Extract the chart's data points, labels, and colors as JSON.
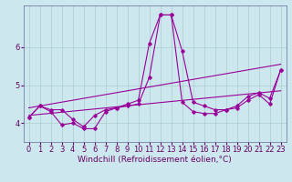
{
  "xlabel": "Windchill (Refroidissement éolien,°C)",
  "bg_color": "#cce8ee",
  "grid_color": "#aacccc",
  "line_color": "#990099",
  "xlim": [
    -0.5,
    23.5
  ],
  "ylim": [
    3.5,
    7.1
  ],
  "yticks": [
    4,
    5,
    6
  ],
  "xticks": [
    0,
    1,
    2,
    3,
    4,
    5,
    6,
    7,
    8,
    9,
    10,
    11,
    12,
    13,
    14,
    15,
    16,
    17,
    18,
    19,
    20,
    21,
    22,
    23
  ],
  "s1": [
    4.15,
    4.45,
    4.35,
    4.35,
    4.1,
    3.9,
    4.2,
    4.35,
    4.4,
    4.5,
    4.6,
    6.1,
    6.85,
    6.85,
    5.9,
    4.55,
    4.45,
    4.35,
    4.35,
    4.45,
    4.7,
    4.8,
    4.65,
    5.4
  ],
  "s2": [
    4.15,
    4.45,
    4.3,
    3.95,
    4.0,
    3.85,
    3.85,
    4.3,
    4.4,
    4.45,
    4.5,
    5.2,
    6.85,
    6.85,
    4.55,
    4.3,
    4.25,
    4.25,
    4.35,
    4.4,
    4.6,
    4.75,
    4.5,
    5.4
  ],
  "trend1_x": [
    0,
    23
  ],
  "trend1_y": [
    4.2,
    4.85
  ],
  "trend2_x": [
    0,
    23
  ],
  "trend2_y": [
    4.4,
    5.55
  ],
  "xlabel_fontsize": 6.5,
  "tick_fontsize": 6.0
}
